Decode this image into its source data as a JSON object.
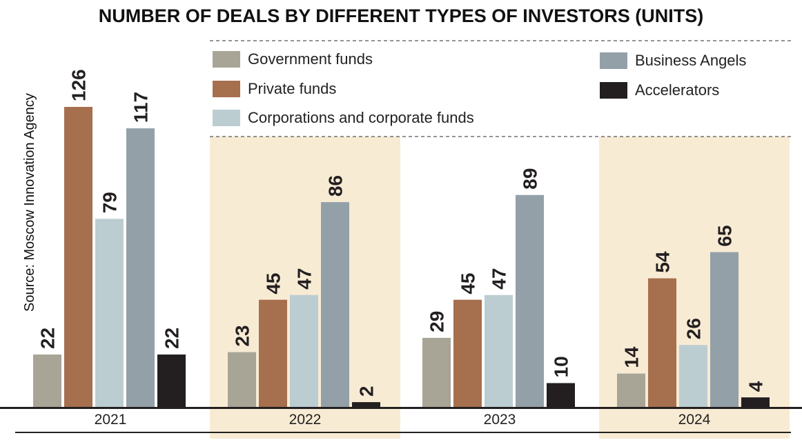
{
  "title": "NUMBER OF DEALS BY DIFFERENT TYPES OF INVESTORS (UNITS)",
  "source": "Source: Moscow Innovation Agency",
  "colors": {
    "Government funds": "#a8a596",
    "Private funds": "#a66f4e",
    "Corporations and corporate funds": "#bccdd1",
    "Business Angels": "#93a0a8",
    "Accelerators": "#231f20",
    "highlight_band": "#f8ebd4",
    "axis": "#231f20"
  },
  "legend": [
    {
      "label": "Government funds",
      "color": "#a8a596"
    },
    {
      "label": "Private funds",
      "color": "#a66f4e"
    },
    {
      "label": "Corporations and corporate funds",
      "color": "#bccdd1"
    },
    {
      "label": "Business Angels",
      "color": "#93a0a8"
    },
    {
      "label": "Accelerators",
      "color": "#231f20"
    }
  ],
  "chart_data": {
    "type": "bar",
    "title": "NUMBER OF DEALS BY DIFFERENT TYPES OF INVESTORS (UNITS)",
    "categories": [
      "2021",
      "2022",
      "2023",
      "2024"
    ],
    "highlighted_categories": [
      "2022",
      "2024"
    ],
    "series": [
      {
        "name": "Government funds",
        "values": [
          22,
          23,
          29,
          14
        ]
      },
      {
        "name": "Private funds",
        "values": [
          126,
          45,
          45,
          54
        ]
      },
      {
        "name": "Corporations and corporate funds",
        "values": [
          79,
          47,
          47,
          26
        ]
      },
      {
        "name": "Business Angels",
        "values": [
          117,
          86,
          89,
          65
        ]
      },
      {
        "name": "Accelerators",
        "values": [
          22,
          2,
          10,
          4
        ]
      }
    ],
    "ylim": [
      0,
      126
    ],
    "grid": false,
    "legend_position": "top"
  }
}
